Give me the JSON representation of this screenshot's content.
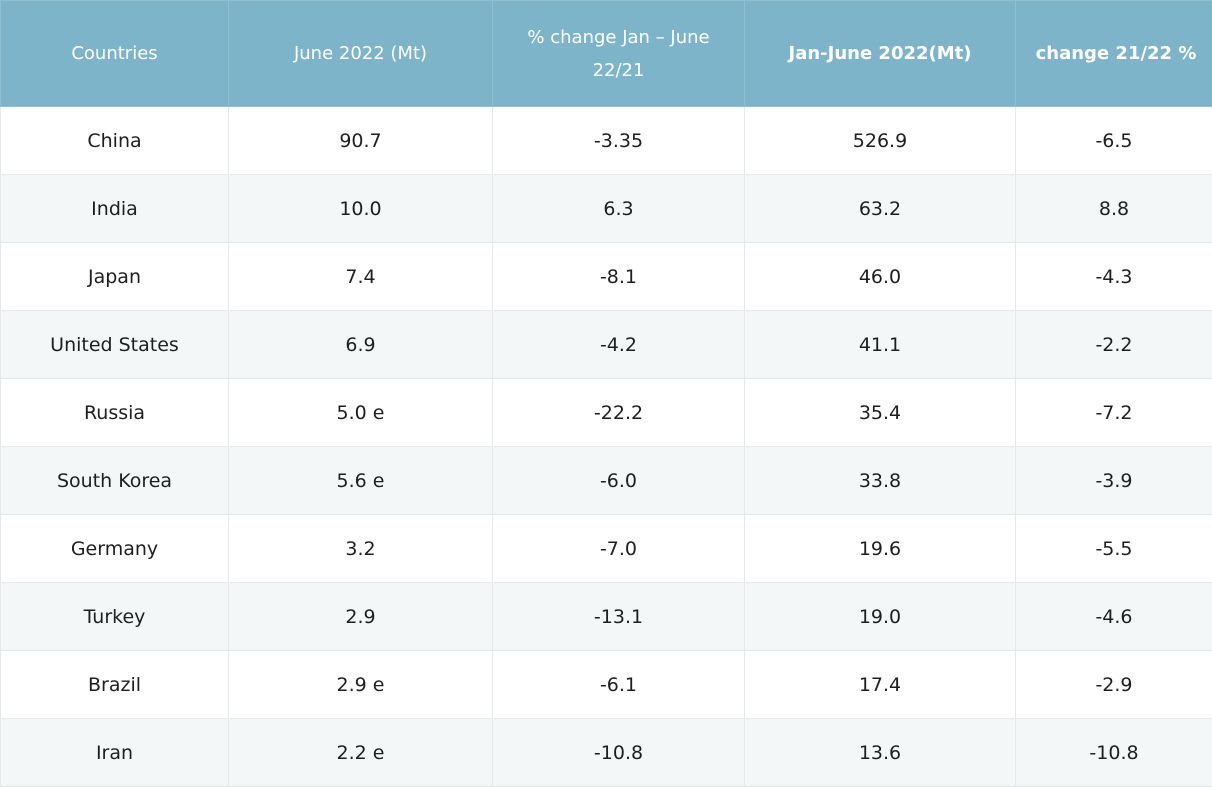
{
  "table": {
    "header": [
      "Countries",
      "June 2022 (Mt)",
      "% change Jan – June 22/21",
      "Jan-June 2022(Mt)",
      "change 21/22 %"
    ],
    "rows": [
      [
        "China",
        "90.7",
        "-3.35",
        "526.9",
        "-6.5"
      ],
      [
        "India",
        "10.0",
        "6.3",
        "63.2",
        "8.8"
      ],
      [
        "Japan",
        "7.4",
        "-8.1",
        "46.0",
        "-4.3"
      ],
      [
        "United States",
        "6.9",
        "-4.2",
        "41.1",
        "-2.2"
      ],
      [
        "Russia",
        "5.0 e",
        "-22.2",
        "35.4",
        "-7.2"
      ],
      [
        "South Korea",
        "5.6 e",
        "-6.0",
        "33.8",
        "-3.9"
      ],
      [
        "Germany",
        "3.2",
        "-7.0",
        "19.6",
        "-5.5"
      ],
      [
        "Turkey",
        "2.9",
        "-13.1",
        "19.0",
        "-4.6"
      ],
      [
        "Brazil",
        "2.9 e",
        "-6.1",
        "17.4",
        "-2.9"
      ],
      [
        "Iran",
        "2.2 e",
        "-10.8",
        "13.6",
        "-10.8"
      ]
    ]
  }
}
